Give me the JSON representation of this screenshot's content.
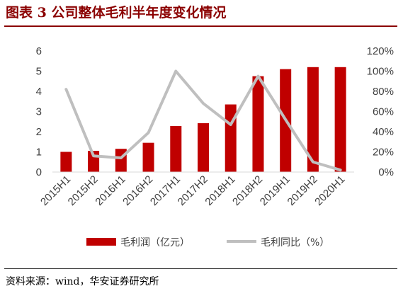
{
  "header": {
    "title": "图表 3 公司整体毛利半年度变化情况"
  },
  "footer": {
    "source": "资料来源：wind，华安证券研究所"
  },
  "colors": {
    "bar": "#c00000",
    "line": "#bfbfbf",
    "title": "#8b0000"
  },
  "chart_data": {
    "type": "bar",
    "title": "",
    "xlabel": "",
    "ylabel": "",
    "categories": [
      "2015H1",
      "2015H2",
      "2016H1",
      "2016H2",
      "2017H1",
      "2017H2",
      "2018H1",
      "2018H2",
      "2019H1",
      "2019H2",
      "2020H1"
    ],
    "series": [
      {
        "name": "毛利润（亿元）",
        "type": "bar",
        "axis": "left",
        "values": [
          1.0,
          1.05,
          1.15,
          1.45,
          2.28,
          2.42,
          3.35,
          4.75,
          5.1,
          5.2,
          5.2
        ]
      },
      {
        "name": "毛利同比（%）",
        "type": "line",
        "axis": "right",
        "values": [
          82,
          16,
          14,
          39,
          100,
          68,
          47,
          95,
          52,
          10,
          2
        ]
      }
    ],
    "ylim": [
      0,
      6
    ],
    "y2lim": [
      0,
      120
    ],
    "yticks": [
      "0",
      "1",
      "2",
      "3",
      "4",
      "5",
      "6"
    ],
    "y2ticks": [
      "0%",
      "20%",
      "40%",
      "60%",
      "80%",
      "100%",
      "120%"
    ],
    "grid": false,
    "legend": "bottom"
  }
}
